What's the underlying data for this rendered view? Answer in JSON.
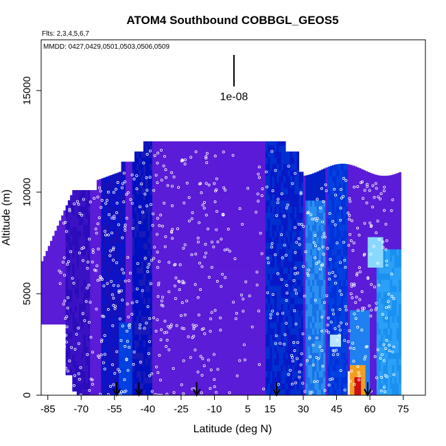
{
  "chart_data": {
    "type": "heatmap",
    "title": "ATOM4 Southbound COBBGL_GEOS5",
    "flights_note": "Flts: 2,3,4,5,6,7",
    "dates_note": "MMDD: 0427,0429,0501,0503,0506,0509",
    "xlabel": "Latitude (deg N)",
    "ylabel": "Altitude (m)",
    "xlim": [
      -88,
      85
    ],
    "ylim": [
      0,
      17500
    ],
    "x_ticks": [
      -85,
      -70,
      -55,
      -40,
      -25,
      -10,
      5,
      15,
      30,
      45,
      60,
      75
    ],
    "x_tick_labels": [
      "-85",
      "-70",
      "-55",
      "-40",
      "-25",
      "-10",
      "5",
      "15",
      "30",
      "45",
      "60",
      "75"
    ],
    "y_ticks": [
      0,
      5000,
      10000,
      15000
    ],
    "y_tick_labels": [
      "0",
      "5000",
      "10000",
      "15000"
    ],
    "scale_bar_label": "1e-08",
    "profile_arrow_latitudes": [
      -54,
      -44,
      -18,
      18,
      59
    ],
    "colors": {
      "background_field": "#5a1cd6",
      "low": "#3a10c0",
      "mid": "#0010d0",
      "high": "#1a90f0",
      "peak": "#d01010",
      "samples": "#ffffff"
    }
  }
}
